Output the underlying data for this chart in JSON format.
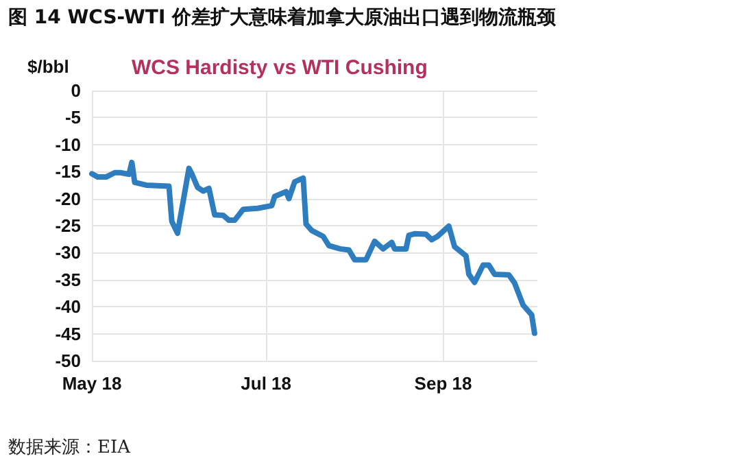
{
  "chart_data": {
    "type": "line",
    "title": "图 14 WCS-WTI 价差扩大意味着加拿大原油出口遇到物流瓶颈",
    "subtitle": "WCS Hardisty vs WTI Cushing",
    "ylabel": "$/bbl",
    "annotations": [
      "数据来源：EIA"
    ],
    "x": [
      "2018-05-01",
      "2018-05-03",
      "2018-05-06",
      "2018-05-09",
      "2018-05-11",
      "2018-05-14",
      "2018-05-15",
      "2018-05-16",
      "2018-05-20",
      "2018-05-28",
      "2018-05-29",
      "2018-05-31",
      "2018-06-04",
      "2018-06-05",
      "2018-06-07",
      "2018-06-09",
      "2018-06-11",
      "2018-06-13",
      "2018-06-16",
      "2018-06-18",
      "2018-06-20",
      "2018-06-23",
      "2018-06-28",
      "2018-07-03",
      "2018-07-04",
      "2018-07-08",
      "2018-07-09",
      "2018-07-11",
      "2018-07-14",
      "2018-07-15",
      "2018-07-17",
      "2018-07-21",
      "2018-07-23",
      "2018-07-27",
      "2018-07-30",
      "2018-08-01",
      "2018-08-05",
      "2018-08-08",
      "2018-08-11",
      "2018-08-14",
      "2018-08-15",
      "2018-08-19",
      "2018-08-20",
      "2018-08-22",
      "2018-08-26",
      "2018-08-28",
      "2018-08-30",
      "2018-09-03",
      "2018-09-05",
      "2018-09-09",
      "2018-09-10",
      "2018-09-12",
      "2018-09-15",
      "2018-09-17",
      "2018-09-19",
      "2018-09-24",
      "2018-09-26",
      "2018-09-29",
      "2018-10-02",
      "2018-10-03"
    ],
    "series": [
      {
        "color": "#2e7dbf",
        "values": [
          -15.4,
          -16,
          -16,
          -15.2,
          -15.2,
          -15.5,
          -13.3,
          -17,
          -17.5,
          -17.7,
          -24.2,
          -26.4,
          -14.4,
          -15.4,
          -17.9,
          -18.6,
          -18.1,
          -23,
          -23.1,
          -24,
          -24,
          -22,
          -21.8,
          -21.3,
          -19.6,
          -18.7,
          -20,
          -16.9,
          -16.2,
          -24.7,
          -25.9,
          -27,
          -28.7,
          -29.3,
          -29.5,
          -31.3,
          -31.3,
          -27.9,
          -29.3,
          -28.1,
          -29.3,
          -29.3,
          -26.8,
          -26.5,
          -26.6,
          -27.6,
          -27,
          -25.1,
          -28.9,
          -30.6,
          -34,
          -35.5,
          -32.3,
          -32.3,
          -34,
          -34.1,
          -35.6,
          -39.7,
          -41.5,
          -44.9
        ]
      }
    ],
    "xlim": [
      "2018-05-01",
      "2018-10-04"
    ],
    "xticks": [
      {
        "value": "2018-05",
        "label": "May 18"
      },
      {
        "value": "2018-07",
        "label": "Jul 18"
      },
      {
        "value": "2018-09",
        "label": "Sep 18"
      }
    ],
    "ylim": [
      -50,
      0
    ],
    "yticks": [
      -50,
      -45,
      -40,
      -35,
      -30,
      -25,
      -20,
      -15,
      -10,
      -5,
      0
    ],
    "grid": true,
    "marker": "none",
    "line_style": "solid"
  }
}
